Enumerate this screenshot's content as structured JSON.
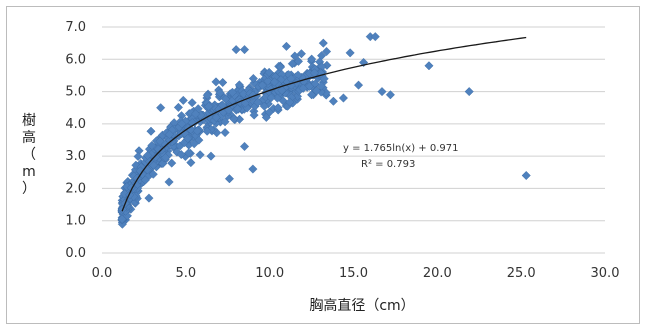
{
  "chart_data": {
    "type": "scatter",
    "xlabel": "胸高直径（cm）",
    "ylabel_chars": [
      "樹",
      "高",
      "（",
      "m",
      "）"
    ],
    "xlim": [
      0,
      30
    ],
    "ylim": [
      0,
      7
    ],
    "x_ticks": [
      "0.0",
      "5.0",
      "10.0",
      "15.0",
      "20.0",
      "25.0",
      "30.0"
    ],
    "y_ticks": [
      "0.0",
      "1.0",
      "2.0",
      "3.0",
      "4.0",
      "5.0",
      "6.0",
      "7.0"
    ],
    "grid": true,
    "point_color": "#4f81bd",
    "trend_color": "#1a1a1a",
    "trendline": {
      "form": "log",
      "a": 1.765,
      "b": 0.971,
      "x_range": [
        1.2,
        25.3
      ]
    },
    "equation": "y = 1.765ln(x) + 0.971",
    "r_squared": "R² = 0.793",
    "points_notable": [
      [
        16.0,
        6.7
      ],
      [
        16.3,
        6.7
      ],
      [
        14.8,
        6.2
      ],
      [
        13.2,
        6.5
      ],
      [
        8.0,
        6.3
      ],
      [
        8.5,
        6.3
      ],
      [
        11.0,
        6.4
      ],
      [
        11.5,
        6.1
      ],
      [
        15.6,
        5.9
      ],
      [
        19.5,
        5.8
      ],
      [
        21.9,
        5.0
      ],
      [
        25.3,
        2.4
      ],
      [
        17.2,
        4.9
      ],
      [
        16.7,
        5.0
      ],
      [
        15.3,
        5.2
      ],
      [
        14.4,
        4.8
      ],
      [
        13.8,
        4.7
      ],
      [
        7.6,
        2.3
      ],
      [
        9.0,
        2.6
      ],
      [
        5.3,
        2.8
      ],
      [
        8.5,
        3.3
      ],
      [
        10.5,
        4.5
      ],
      [
        12.5,
        4.9
      ],
      [
        3.5,
        4.5
      ],
      [
        2.8,
        1.7
      ],
      [
        4.0,
        2.2
      ],
      [
        6.5,
        3.0
      ],
      [
        12.0,
        5.1
      ],
      [
        9.8,
        4.2
      ],
      [
        6.8,
        5.3
      ]
    ],
    "dense_cluster": {
      "x_range": [
        1.2,
        13.5
      ],
      "count": 650,
      "spread": 0.45,
      "seed": 7
    }
  }
}
